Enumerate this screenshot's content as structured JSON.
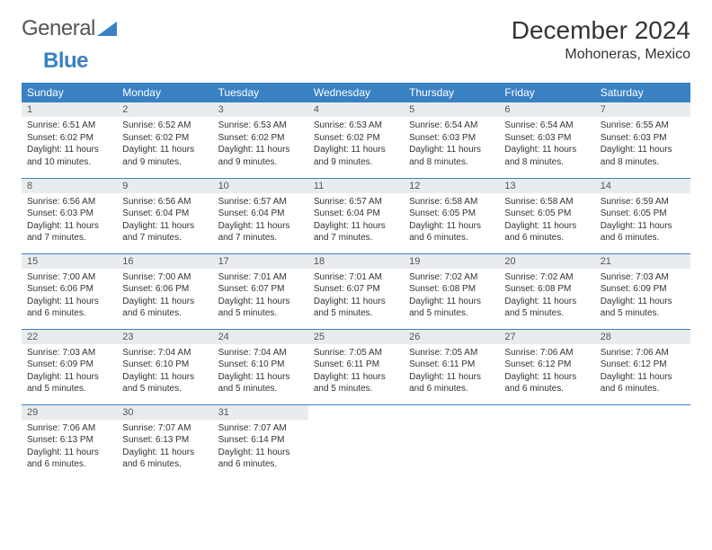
{
  "logo": {
    "text1": "General",
    "text2": "Blue"
  },
  "title": "December 2024",
  "location": "Mohoneras, Mexico",
  "colors": {
    "header_bg": "#3a81c4",
    "header_fg": "#ffffff",
    "daynum_bg": "#e9ecef",
    "border": "#3a81c4",
    "text": "#333333"
  },
  "weekdays": [
    "Sunday",
    "Monday",
    "Tuesday",
    "Wednesday",
    "Thursday",
    "Friday",
    "Saturday"
  ],
  "weeks": [
    [
      {
        "n": "1",
        "sr": "Sunrise: 6:51 AM",
        "ss": "Sunset: 6:02 PM",
        "dl": "Daylight: 11 hours and 10 minutes."
      },
      {
        "n": "2",
        "sr": "Sunrise: 6:52 AM",
        "ss": "Sunset: 6:02 PM",
        "dl": "Daylight: 11 hours and 9 minutes."
      },
      {
        "n": "3",
        "sr": "Sunrise: 6:53 AM",
        "ss": "Sunset: 6:02 PM",
        "dl": "Daylight: 11 hours and 9 minutes."
      },
      {
        "n": "4",
        "sr": "Sunrise: 6:53 AM",
        "ss": "Sunset: 6:02 PM",
        "dl": "Daylight: 11 hours and 9 minutes."
      },
      {
        "n": "5",
        "sr": "Sunrise: 6:54 AM",
        "ss": "Sunset: 6:03 PM",
        "dl": "Daylight: 11 hours and 8 minutes."
      },
      {
        "n": "6",
        "sr": "Sunrise: 6:54 AM",
        "ss": "Sunset: 6:03 PM",
        "dl": "Daylight: 11 hours and 8 minutes."
      },
      {
        "n": "7",
        "sr": "Sunrise: 6:55 AM",
        "ss": "Sunset: 6:03 PM",
        "dl": "Daylight: 11 hours and 8 minutes."
      }
    ],
    [
      {
        "n": "8",
        "sr": "Sunrise: 6:56 AM",
        "ss": "Sunset: 6:03 PM",
        "dl": "Daylight: 11 hours and 7 minutes."
      },
      {
        "n": "9",
        "sr": "Sunrise: 6:56 AM",
        "ss": "Sunset: 6:04 PM",
        "dl": "Daylight: 11 hours and 7 minutes."
      },
      {
        "n": "10",
        "sr": "Sunrise: 6:57 AM",
        "ss": "Sunset: 6:04 PM",
        "dl": "Daylight: 11 hours and 7 minutes."
      },
      {
        "n": "11",
        "sr": "Sunrise: 6:57 AM",
        "ss": "Sunset: 6:04 PM",
        "dl": "Daylight: 11 hours and 7 minutes."
      },
      {
        "n": "12",
        "sr": "Sunrise: 6:58 AM",
        "ss": "Sunset: 6:05 PM",
        "dl": "Daylight: 11 hours and 6 minutes."
      },
      {
        "n": "13",
        "sr": "Sunrise: 6:58 AM",
        "ss": "Sunset: 6:05 PM",
        "dl": "Daylight: 11 hours and 6 minutes."
      },
      {
        "n": "14",
        "sr": "Sunrise: 6:59 AM",
        "ss": "Sunset: 6:05 PM",
        "dl": "Daylight: 11 hours and 6 minutes."
      }
    ],
    [
      {
        "n": "15",
        "sr": "Sunrise: 7:00 AM",
        "ss": "Sunset: 6:06 PM",
        "dl": "Daylight: 11 hours and 6 minutes."
      },
      {
        "n": "16",
        "sr": "Sunrise: 7:00 AM",
        "ss": "Sunset: 6:06 PM",
        "dl": "Daylight: 11 hours and 6 minutes."
      },
      {
        "n": "17",
        "sr": "Sunrise: 7:01 AM",
        "ss": "Sunset: 6:07 PM",
        "dl": "Daylight: 11 hours and 5 minutes."
      },
      {
        "n": "18",
        "sr": "Sunrise: 7:01 AM",
        "ss": "Sunset: 6:07 PM",
        "dl": "Daylight: 11 hours and 5 minutes."
      },
      {
        "n": "19",
        "sr": "Sunrise: 7:02 AM",
        "ss": "Sunset: 6:08 PM",
        "dl": "Daylight: 11 hours and 5 minutes."
      },
      {
        "n": "20",
        "sr": "Sunrise: 7:02 AM",
        "ss": "Sunset: 6:08 PM",
        "dl": "Daylight: 11 hours and 5 minutes."
      },
      {
        "n": "21",
        "sr": "Sunrise: 7:03 AM",
        "ss": "Sunset: 6:09 PM",
        "dl": "Daylight: 11 hours and 5 minutes."
      }
    ],
    [
      {
        "n": "22",
        "sr": "Sunrise: 7:03 AM",
        "ss": "Sunset: 6:09 PM",
        "dl": "Daylight: 11 hours and 5 minutes."
      },
      {
        "n": "23",
        "sr": "Sunrise: 7:04 AM",
        "ss": "Sunset: 6:10 PM",
        "dl": "Daylight: 11 hours and 5 minutes."
      },
      {
        "n": "24",
        "sr": "Sunrise: 7:04 AM",
        "ss": "Sunset: 6:10 PM",
        "dl": "Daylight: 11 hours and 5 minutes."
      },
      {
        "n": "25",
        "sr": "Sunrise: 7:05 AM",
        "ss": "Sunset: 6:11 PM",
        "dl": "Daylight: 11 hours and 5 minutes."
      },
      {
        "n": "26",
        "sr": "Sunrise: 7:05 AM",
        "ss": "Sunset: 6:11 PM",
        "dl": "Daylight: 11 hours and 6 minutes."
      },
      {
        "n": "27",
        "sr": "Sunrise: 7:06 AM",
        "ss": "Sunset: 6:12 PM",
        "dl": "Daylight: 11 hours and 6 minutes."
      },
      {
        "n": "28",
        "sr": "Sunrise: 7:06 AM",
        "ss": "Sunset: 6:12 PM",
        "dl": "Daylight: 11 hours and 6 minutes."
      }
    ],
    [
      {
        "n": "29",
        "sr": "Sunrise: 7:06 AM",
        "ss": "Sunset: 6:13 PM",
        "dl": "Daylight: 11 hours and 6 minutes."
      },
      {
        "n": "30",
        "sr": "Sunrise: 7:07 AM",
        "ss": "Sunset: 6:13 PM",
        "dl": "Daylight: 11 hours and 6 minutes."
      },
      {
        "n": "31",
        "sr": "Sunrise: 7:07 AM",
        "ss": "Sunset: 6:14 PM",
        "dl": "Daylight: 11 hours and 6 minutes."
      },
      null,
      null,
      null,
      null
    ]
  ]
}
